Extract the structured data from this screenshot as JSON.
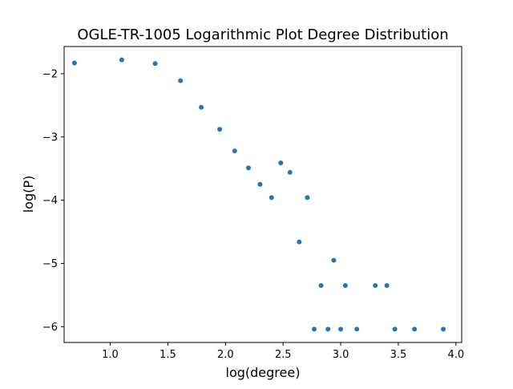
{
  "chart_data": {
    "type": "scatter",
    "title": "OGLE-TR-1005 Logarithmic Plot Degree Distribution",
    "xlabel": "log(degree)",
    "ylabel": "log(P)",
    "xlim": [
      0.6,
      4.05
    ],
    "ylim": [
      -6.25,
      -1.57
    ],
    "xticks": [
      1.0,
      1.5,
      2.0,
      2.5,
      3.0,
      3.5,
      4.0
    ],
    "xtick_labels": [
      "1.0",
      "1.5",
      "2.0",
      "2.5",
      "3.0",
      "3.5",
      "4.0"
    ],
    "yticks": [
      -2,
      -3,
      -4,
      -5,
      -6
    ],
    "ytick_labels": [
      "−2",
      "−3",
      "−4",
      "−5",
      "−6"
    ],
    "grid": false,
    "marker_color": "#1f77b4",
    "points": [
      {
        "x": 0.69,
        "y": -1.83
      },
      {
        "x": 1.1,
        "y": -1.78
      },
      {
        "x": 1.39,
        "y": -1.84
      },
      {
        "x": 1.61,
        "y": -2.11
      },
      {
        "x": 1.79,
        "y": -2.53
      },
      {
        "x": 1.95,
        "y": -2.88
      },
      {
        "x": 2.08,
        "y": -3.22
      },
      {
        "x": 2.2,
        "y": -3.49
      },
      {
        "x": 2.3,
        "y": -3.75
      },
      {
        "x": 2.4,
        "y": -3.96
      },
      {
        "x": 2.48,
        "y": -3.41
      },
      {
        "x": 2.56,
        "y": -3.56
      },
      {
        "x": 2.64,
        "y": -4.66
      },
      {
        "x": 2.71,
        "y": -3.96
      },
      {
        "x": 2.77,
        "y": -6.04
      },
      {
        "x": 2.83,
        "y": -5.35
      },
      {
        "x": 2.89,
        "y": -6.04
      },
      {
        "x": 2.94,
        "y": -4.95
      },
      {
        "x": 3.0,
        "y": -6.04
      },
      {
        "x": 3.04,
        "y": -5.35
      },
      {
        "x": 3.14,
        "y": -6.04
      },
      {
        "x": 3.3,
        "y": -5.35
      },
      {
        "x": 3.4,
        "y": -5.35
      },
      {
        "x": 3.47,
        "y": -6.04
      },
      {
        "x": 3.64,
        "y": -6.04
      },
      {
        "x": 3.89,
        "y": -6.04
      }
    ]
  }
}
